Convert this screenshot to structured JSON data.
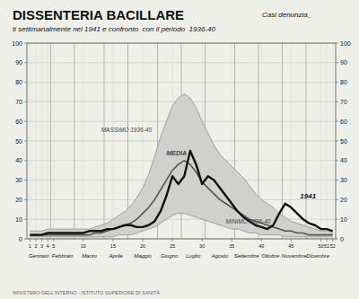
{
  "chart_data": {
    "type": "line",
    "title": "DISSENTERIA BACILLARE",
    "subtitle": [
      "Casi denunzia_",
      "ti settimanalmente nel 1941 e confronto  con il periodo  1936-40"
    ],
    "footer": "MINISTERO DELL'INTERNO - ISTITUTO SUPERIORE DI SANITÀ",
    "background": "#efefea",
    "band_color": "#d0d0cc",
    "x": [
      1,
      2,
      3,
      4,
      5,
      6,
      7,
      8,
      9,
      10,
      11,
      12,
      13,
      14,
      15,
      16,
      17,
      18,
      19,
      20,
      21,
      22,
      23,
      24,
      25,
      26,
      27,
      28,
      29,
      30,
      31,
      32,
      33,
      34,
      35,
      36,
      37,
      38,
      39,
      40,
      41,
      42,
      43,
      44,
      45,
      46,
      47,
      48,
      49,
      50,
      51,
      52
    ],
    "xlim": [
      0.5,
      52.5
    ],
    "xticks": [
      1,
      2,
      3,
      4,
      5,
      10,
      15,
      20,
      25,
      30,
      35,
      40,
      45,
      50,
      51,
      52
    ],
    "x2ticks": [
      {
        "value": 2.5,
        "label": "Gennaio"
      },
      {
        "value": 6.5,
        "label": "Febbraio"
      },
      {
        "value": 11.0,
        "label": "Marzo"
      },
      {
        "value": 15.5,
        "label": "Aprile"
      },
      {
        "value": 20.0,
        "label": "Maggio"
      },
      {
        "value": 24.5,
        "label": "Giugno"
      },
      {
        "value": 28.5,
        "label": "Luglio"
      },
      {
        "value": 33.0,
        "label": "Agosto"
      },
      {
        "value": 37.5,
        "label": "Settembre"
      },
      {
        "value": 41.5,
        "label": "Ottobre"
      },
      {
        "value": 45.5,
        "label": "Novembre"
      },
      {
        "value": 49.5,
        "label": "Dicembre"
      }
    ],
    "month_boundaries": [
      4.5,
      8.5,
      13.5,
      17.5,
      22.5,
      26.5,
      30.5,
      35.5,
      39.5,
      43.5,
      47.5
    ],
    "ylim": [
      0,
      100
    ],
    "yticks": [
      0,
      10,
      20,
      30,
      40,
      50,
      60,
      70,
      80,
      90,
      100
    ],
    "grid": true,
    "series": [
      {
        "name": "MASSIMO 1936-40",
        "color": "#999999",
        "label_at": {
          "x": 13,
          "y": 54
        },
        "values": [
          4,
          4,
          4,
          5,
          5,
          5,
          5,
          5,
          5,
          5,
          5,
          6,
          7,
          8,
          10,
          12,
          14,
          17,
          21,
          26,
          33,
          42,
          52,
          60,
          68,
          72,
          74,
          72,
          67,
          60,
          54,
          48,
          43,
          40,
          37,
          34,
          31,
          27,
          23,
          20,
          18,
          16,
          13,
          11,
          9,
          8,
          7,
          6,
          5,
          4,
          4,
          3
        ]
      },
      {
        "name": "MINIMO 1936-40",
        "color": "#999999",
        "label_at": {
          "x": 34,
          "y": 7
        },
        "values": [
          1,
          1,
          1,
          1,
          1,
          1,
          1,
          1,
          1,
          1,
          1,
          1,
          1,
          1,
          1,
          2,
          2,
          2,
          3,
          4,
          5,
          6,
          8,
          10,
          12,
          13,
          13,
          12,
          11,
          10,
          9,
          8,
          7,
          6,
          5,
          5,
          4,
          3,
          3,
          2,
          2,
          2,
          2,
          1,
          1,
          1,
          1,
          1,
          1,
          1,
          1,
          1
        ]
      },
      {
        "name": "MEDIA",
        "color": "#555555",
        "label_at": {
          "x": 24,
          "y": 42
        },
        "values": [
          2,
          2,
          2,
          2,
          2,
          2,
          2,
          2,
          2,
          2,
          2,
          3,
          3,
          4,
          5,
          6,
          7,
          8,
          10,
          13,
          16,
          20,
          25,
          30,
          35,
          38,
          40,
          38,
          34,
          29,
          26,
          23,
          20,
          18,
          16,
          14,
          12,
          10,
          9,
          8,
          7,
          6,
          5,
          4,
          4,
          3,
          3,
          2,
          2,
          2,
          2,
          2
        ]
      },
      {
        "name": "1941",
        "color": "#111111",
        "label_at": {
          "x": 46.5,
          "y": 20
        },
        "values": [
          2,
          2,
          2,
          3,
          3,
          3,
          3,
          3,
          3,
          3,
          4,
          4,
          4,
          5,
          5,
          6,
          7,
          7,
          6,
          6,
          7,
          9,
          14,
          22,
          32,
          28,
          32,
          45,
          38,
          28,
          32,
          30,
          26,
          22,
          18,
          14,
          11,
          9,
          7,
          6,
          5,
          7,
          13,
          18,
          16,
          13,
          10,
          8,
          7,
          5,
          5,
          4
        ]
      }
    ]
  }
}
